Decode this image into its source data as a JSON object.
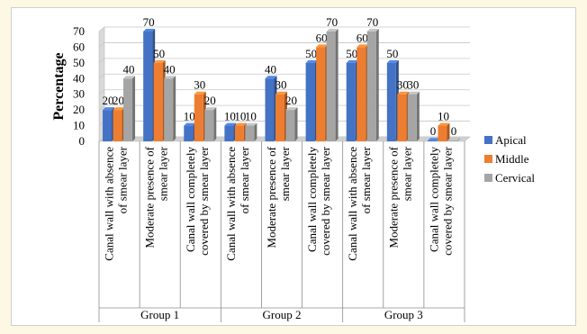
{
  "chart_data": {
    "type": "bar",
    "ylabel": "Percentage",
    "ylim": [
      0,
      70
    ],
    "yticks": [
      0,
      10,
      20,
      30,
      40,
      50,
      60,
      70
    ],
    "grid": true,
    "legend_position": "right",
    "categories": [
      "Canal wall with absence of smear layer",
      "Moderate presence of smear layer",
      "Canal wall completely covered by smear layer",
      "Canal wall with absence of smear layer",
      "Moderate presence of smear layer",
      "Canal wall completely covered by smear layer",
      "Canal wall with absence of smear layer",
      "Moderate presence of smear layer",
      "Canal wall completely covered by smear layer"
    ],
    "category_lines": [
      [
        "Canal wall with absence",
        "of smear layer"
      ],
      [
        "Moderate presence of",
        "smear layer"
      ],
      [
        "Canal wall completely",
        "covered by smear layer"
      ],
      [
        "Canal wall with absence",
        "of smear layer"
      ],
      [
        "Moderate presence of",
        "smear layer"
      ],
      [
        "Canal wall completely",
        "covered by smear layer"
      ],
      [
        "Canal wall with absence",
        "of smear layer"
      ],
      [
        "Moderate presence of",
        "smear layer"
      ],
      [
        "Canal wall completely",
        "covered by smear layer"
      ]
    ],
    "groups": [
      {
        "label": "Group 1",
        "span": 3
      },
      {
        "label": "Group 2",
        "span": 3
      },
      {
        "label": "Group 3",
        "span": 3
      }
    ],
    "series": [
      {
        "name": "Apical",
        "color": "#4472c4",
        "values": [
          20,
          70,
          10,
          10,
          40,
          50,
          50,
          50,
          0
        ]
      },
      {
        "name": "Middle",
        "color": "#ed7d31",
        "values": [
          20,
          50,
          30,
          10,
          30,
          60,
          60,
          30,
          10
        ]
      },
      {
        "name": "Cervical",
        "color": "#a5a5a5",
        "values": [
          40,
          40,
          20,
          10,
          20,
          70,
          70,
          30,
          0
        ]
      }
    ],
    "data_labels": [
      [
        "20",
        "70",
        "10",
        "10",
        "40",
        "50",
        "50",
        "50",
        "0"
      ],
      [
        "20",
        "50",
        "30",
        "10",
        "30",
        "60",
        "60",
        "30",
        "10"
      ],
      [
        "40",
        "40",
        "20",
        "10",
        "20",
        "70",
        "70",
        "30",
        "0"
      ]
    ]
  }
}
